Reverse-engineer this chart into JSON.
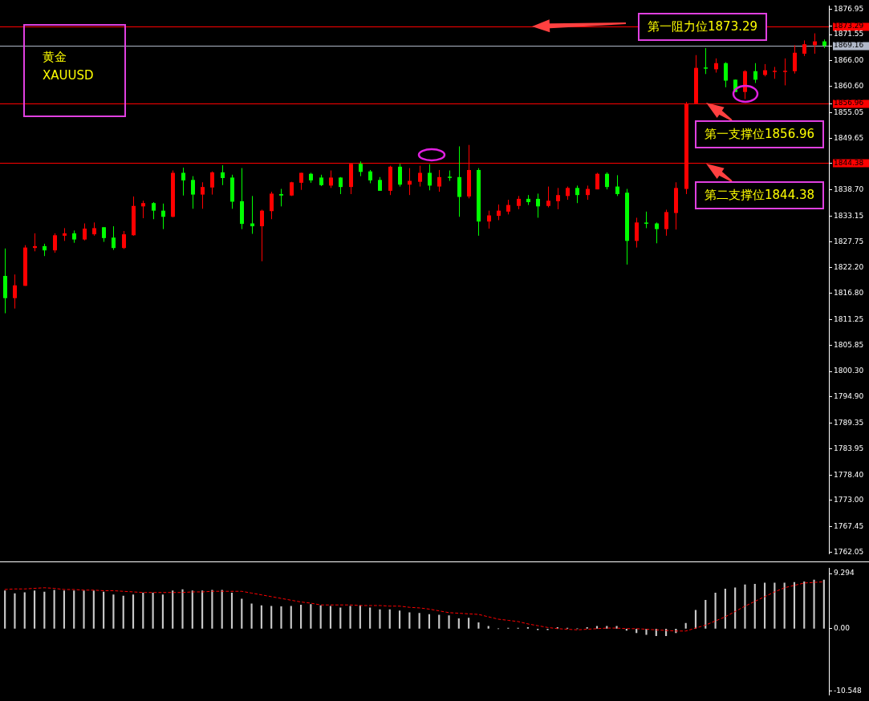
{
  "chart_data": [
    {
      "type": "candlestick",
      "title": "黄金",
      "subtitle": "XAUUSD",
      "categories": [
        null,
        null,
        null,
        null,
        null,
        null,
        null,
        null,
        null,
        null,
        null,
        null,
        null,
        null,
        null,
        null,
        null,
        null,
        null,
        null,
        null,
        null,
        null,
        null,
        null,
        null,
        null,
        null,
        null,
        null,
        null,
        null,
        null,
        null,
        null,
        null,
        null,
        null,
        null,
        null,
        null,
        null,
        null,
        null,
        null,
        null,
        null,
        null,
        null,
        null,
        null,
        null,
        null,
        null,
        null,
        null,
        null,
        null,
        null,
        null,
        null,
        null,
        null,
        null,
        null,
        null,
        null,
        null,
        null,
        null,
        null,
        null,
        null,
        null,
        null,
        null,
        null,
        null,
        null,
        null,
        null,
        null,
        null,
        null
      ],
      "ylim": [
        1761.7,
        1877.6
      ],
      "yticks": [
        1876.95,
        1873.29,
        1871.55,
        1869.16,
        {
          "value": 1866,
          "label": "1866.00"
        },
        {
          "value": 1860.6,
          "label": "1860.60"
        },
        1856.96,
        1855.05,
        1849.65,
        1844.38,
        {
          "value": 1838.7,
          "label": "1838.70"
        },
        1833.15,
        1827.75,
        {
          "value": 1822.2,
          "label": "1822.20"
        },
        {
          "value": 1816.8,
          "label": "1816.80"
        },
        1811.25,
        1805.85,
        {
          "value": 1800.3,
          "label": "1800.30"
        },
        {
          "value": 1794.9,
          "label": "1794.90"
        },
        1789.35,
        1783.95,
        {
          "value": 1778.4,
          "label": "1778.40"
        },
        {
          "value": 1773,
          "label": "1773.00"
        },
        1767.45,
        1762.05
      ],
      "tick_labels": "y",
      "ohlc": [
        [
          1820.5,
          1826.3,
          1812.6,
          1815.8
        ],
        [
          1815.8,
          1820.8,
          1813.6,
          1818.5
        ],
        [
          1818.4,
          1827.0,
          1818.4,
          1826.5
        ],
        [
          1826.4,
          1829.5,
          1825.7,
          1826.8
        ],
        [
          1826.8,
          1827.3,
          1824.7,
          1825.9
        ],
        [
          1825.9,
          1829.5,
          1825.4,
          1829.1
        ],
        [
          1829.0,
          1830.6,
          1827.9,
          1829.5
        ],
        [
          1829.5,
          1830.1,
          1827.5,
          1828.2
        ],
        [
          1828.2,
          1831.6,
          1828.0,
          1830.5
        ],
        [
          1829.3,
          1831.8,
          1829.0,
          1830.6
        ],
        [
          1830.8,
          1830.8,
          1827.7,
          1828.5
        ],
        [
          1828.6,
          1831.0,
          1826.0,
          1826.4
        ],
        [
          1826.4,
          1830.0,
          1826.2,
          1829.3
        ],
        [
          1829.1,
          1837.3,
          1829.0,
          1835.3
        ],
        [
          1835.2,
          1836.4,
          1832.7,
          1835.9
        ],
        [
          1835.9,
          1836.1,
          1832.5,
          1834.3
        ],
        [
          1834.3,
          1835.8,
          1830.4,
          1833.0
        ],
        [
          1833.0,
          1842.8,
          1832.9,
          1842.3
        ],
        [
          1842.3,
          1843.4,
          1837.5,
          1840.7
        ],
        [
          1840.8,
          1841.6,
          1834.7,
          1837.7
        ],
        [
          1837.7,
          1840.3,
          1834.7,
          1839.3
        ],
        [
          1839.2,
          1842.6,
          1837.7,
          1842.4
        ],
        [
          1842.4,
          1843.9,
          1839.7,
          1841.2
        ],
        [
          1841.3,
          1841.9,
          1834.7,
          1836.2
        ],
        [
          1836.3,
          1843.3,
          1830.4,
          1831.5
        ],
        [
          1831.6,
          1837.4,
          1829.4,
          1831.0
        ],
        [
          1831.0,
          1834.5,
          1823.6,
          1834.3
        ],
        [
          1834.2,
          1838.3,
          1832.5,
          1837.9
        ],
        [
          1837.8,
          1838.9,
          1835.2,
          1837.5
        ],
        [
          1837.5,
          1840.4,
          1837.4,
          1840.3
        ],
        [
          1840.2,
          1842.3,
          1838.7,
          1842.3
        ],
        [
          1842.1,
          1842.3,
          1840.2,
          1840.7
        ],
        [
          1841.3,
          1841.9,
          1839.5,
          1839.7
        ],
        [
          1839.6,
          1842.8,
          1839.1,
          1841.3
        ],
        [
          1841.3,
          1841.4,
          1837.8,
          1839.3
        ],
        [
          1839.3,
          1844.2,
          1837.8,
          1844.2
        ],
        [
          1844.2,
          1844.7,
          1841.6,
          1842.5
        ],
        [
          1842.6,
          1842.9,
          1840.1,
          1840.7
        ],
        [
          1840.8,
          1841.4,
          1838.5,
          1838.5
        ],
        [
          1838.5,
          1843.8,
          1837.6,
          1843.6
        ],
        [
          1843.6,
          1844.2,
          1839.4,
          1839.8
        ],
        [
          1839.8,
          1843.3,
          1837.6,
          1840.6
        ],
        [
          1840.4,
          1843.8,
          1839.4,
          1842.3
        ],
        [
          1842.3,
          1844.1,
          1838.6,
          1839.6
        ],
        [
          1839.4,
          1842.9,
          1838.3,
          1841.4
        ],
        [
          1841.4,
          1842.8,
          1840.6,
          1841.3
        ],
        [
          1841.4,
          1847.9,
          1833.0,
          1837.2
        ],
        [
          1837.3,
          1848.2,
          1836.9,
          1842.9
        ],
        [
          1842.9,
          1843.3,
          1829.0,
          1832.0
        ],
        [
          1832.0,
          1834.3,
          1830.5,
          1833.3
        ],
        [
          1833.2,
          1835.6,
          1832.3,
          1834.3
        ],
        [
          1834.1,
          1836.6,
          1833.5,
          1835.5
        ],
        [
          1835.3,
          1837.4,
          1834.6,
          1836.8
        ],
        [
          1836.8,
          1837.6,
          1835.5,
          1836.1
        ],
        [
          1836.8,
          1837.9,
          1832.8,
          1835.2
        ],
        [
          1835.3,
          1839.4,
          1835.0,
          1836.4
        ],
        [
          1836.3,
          1839.1,
          1834.6,
          1837.6
        ],
        [
          1837.4,
          1839.4,
          1836.6,
          1839.1
        ],
        [
          1839.1,
          1839.6,
          1835.9,
          1837.6
        ],
        [
          1837.6,
          1839.6,
          1836.6,
          1838.9
        ],
        [
          1838.8,
          1842.3,
          1838.8,
          1842.1
        ],
        [
          1842.1,
          1842.4,
          1838.8,
          1839.3
        ],
        [
          1839.4,
          1841.8,
          1837.4,
          1837.8
        ],
        [
          1838.1,
          1838.9,
          1822.9,
          1827.9
        ],
        [
          1827.9,
          1832.8,
          1826.5,
          1831.8
        ],
        [
          1831.7,
          1834.1,
          1830.6,
          1831.6
        ],
        [
          1831.6,
          1831.8,
          1827.4,
          1830.4
        ],
        [
          1830.4,
          1834.5,
          1829.0,
          1834.0
        ],
        [
          1833.8,
          1840.3,
          1830.3,
          1839.1
        ],
        [
          1838.9,
          1857.3,
          1837.8,
          1856.9
        ],
        [
          1857.0,
          1867.2,
          1857.0,
          1864.5
        ],
        [
          1864.5,
          1868.7,
          1863.2,
          1864.4
        ],
        [
          1864.2,
          1866.5,
          1863.5,
          1865.5
        ],
        [
          1865.5,
          1865.7,
          1860.4,
          1861.8
        ],
        [
          1862.0,
          1862.0,
          1859.4,
          1859.4
        ],
        [
          1859.4,
          1864.0,
          1857.9,
          1863.8
        ],
        [
          1863.8,
          1865.5,
          1861.3,
          1862.0
        ],
        [
          1863.0,
          1865.3,
          1862.7,
          1864.0
        ],
        [
          1863.6,
          1864.7,
          1862.2,
          1863.8
        ],
        [
          1863.6,
          1866.5,
          1860.8,
          1863.8
        ],
        [
          1863.8,
          1869.3,
          1863.3,
          1867.7
        ],
        [
          1867.5,
          1870.3,
          1867.0,
          1869.5
        ],
        [
          1869.3,
          1871.8,
          1867.5,
          1870.1
        ],
        [
          1870.1,
          1870.5,
          1868.7,
          1869.2
        ]
      ],
      "colors": [
        "#00ff00",
        "#ff0000",
        "#ff0000",
        "#ff0000",
        "#00ff00",
        "#ff0000",
        "#ff0000",
        "#00ff00",
        "#ff0000",
        "#ff0000",
        "#00ff00",
        "#00ff00",
        "#ff0000",
        "#ff0000",
        "#ff0000",
        "#00ff00",
        "#00ff00",
        "#ff0000",
        "#00ff00",
        "#00ff00",
        "#ff0000",
        "#ff0000",
        "#00ff00",
        "#00ff00",
        "#00ff00",
        "#00ff00",
        "#ff0000",
        "#ff0000",
        "#00ff00",
        "#ff0000",
        "#ff0000",
        "#00ff00",
        "#00ff00",
        "#ff0000",
        "#00ff00",
        "#ff0000",
        "#00ff00",
        "#00ff00",
        "#00ff00",
        "#ff0000",
        "#00ff00",
        "#ff0000",
        "#ff0000",
        "#00ff00",
        "#ff0000",
        "#00ff00",
        "#00ff00",
        "#ff0000",
        "#00ff00",
        "#ff0000",
        "#ff0000",
        "#ff0000",
        "#ff0000",
        "#00ff00",
        "#00ff00",
        "#ff0000",
        "#ff0000",
        "#ff0000",
        "#00ff00",
        "#ff0000",
        "#ff0000",
        "#00ff00",
        "#00ff00",
        "#00ff00",
        "#ff0000",
        "#00ff00",
        "#00ff00",
        "#ff0000",
        "#ff0000",
        "#ff0000",
        "#ff0000",
        "#00ff00",
        "#ff0000",
        "#00ff00",
        "#00ff00",
        "#ff0000",
        "#00ff00",
        "#ff0000",
        "#ff0000",
        "#ff0000",
        "#ff0000",
        "#ff0000",
        "#ff0000",
        "#00ff00"
      ],
      "ref_lines": [
        {
          "axis": "y",
          "value": 1873.29,
          "label": "第一阻力位1873.29",
          "color": "#ff0000"
        },
        {
          "axis": "y",
          "value": 1869.16,
          "color": "#b0b8c8"
        },
        {
          "axis": "y",
          "value": 1856.96,
          "label": "第一支撑位1856.96",
          "color": "#ff0000"
        },
        {
          "axis": "y",
          "value": 1844.38,
          "label": "第二支撑位1844.38",
          "color": "#ff0000"
        }
      ]
    },
    {
      "type": "bar",
      "categories": [
        null,
        null,
        null,
        null,
        null,
        null,
        null,
        null,
        null,
        null,
        null,
        null,
        null,
        null,
        null,
        null,
        null,
        null,
        null,
        null,
        null,
        null,
        null,
        null,
        null,
        null,
        null,
        null,
        null,
        null,
        null,
        null,
        null,
        null,
        null,
        null,
        null,
        null,
        null,
        null,
        null,
        null,
        null,
        null,
        null,
        null,
        null,
        null,
        null,
        null,
        null,
        null,
        null,
        null,
        null,
        null,
        null,
        null,
        null,
        null,
        null,
        null,
        null,
        null,
        null,
        null,
        null,
        null,
        null,
        null,
        null,
        null,
        null,
        null,
        null,
        null,
        null,
        null,
        null,
        null,
        null,
        null,
        null,
        null
      ],
      "ylim": [
        -11.2,
        10.2
      ],
      "yticks": [
        9.294,
        {
          "value": 0,
          "label": "0.00"
        },
        -10.548
      ],
      "tick_labels": "y",
      "series": [
        {
          "type": "bar",
          "color": "#c8c8c8",
          "values": [
            6.4,
            5.9,
            6.1,
            6.4,
            6.2,
            6.5,
            6.4,
            6.4,
            6.4,
            6.4,
            6.2,
            5.7,
            5.5,
            5.7,
            6.0,
            6.0,
            5.7,
            6.4,
            6.6,
            6.4,
            6.4,
            6.5,
            6.5,
            6.0,
            5.0,
            4.2,
            3.9,
            3.8,
            3.7,
            3.8,
            4.0,
            4.1,
            3.9,
            3.8,
            3.5,
            3.8,
            3.9,
            3.5,
            3.2,
            3.2,
            3.0,
            2.7,
            2.6,
            2.4,
            2.3,
            2.2,
            1.7,
            1.8,
            1.0,
            0.4,
            0,
            0.1,
            0.1,
            0.2,
            -0.2,
            -0.2,
            0.2,
            0.1,
            0,
            0.2,
            0.4,
            0.4,
            0.4,
            -0.3,
            -0.7,
            -1.0,
            -1.2,
            -1.2,
            -0.7,
            0.9,
            3.1,
            4.8,
            6.0,
            6.7,
            6.9,
            7.4,
            7.5,
            7.7,
            7.7,
            7.7,
            7.8,
            7.9,
            8.2,
            8.2
          ]
        },
        {
          "type": "line",
          "color": "#ff0000",
          "line_style": "dashed",
          "values": [
            6.6,
            6.7,
            6.7,
            6.8,
            6.9,
            6.8,
            6.6,
            6.6,
            6.5,
            6.5,
            6.4,
            6.4,
            6.3,
            6.2,
            6.1,
            6.1,
            6.1,
            6.1,
            6.1,
            6.2,
            6.2,
            6.3,
            6.3,
            6.3,
            6.3,
            6.0,
            5.7,
            5.4,
            5.1,
            4.8,
            4.5,
            4.3,
            4.0,
            4.0,
            4.0,
            4.0,
            3.9,
            3.9,
            3.9,
            3.8,
            3.8,
            3.6,
            3.5,
            3.3,
            3.0,
            2.7,
            2.6,
            2.5,
            2.4,
            2.0,
            1.6,
            1.4,
            1.2,
            0.8,
            0.5,
            0.2,
            0,
            -0.1,
            -0.2,
            -0.1,
            0,
            0.1,
            0.1,
            0,
            0,
            -0.1,
            -0.2,
            -0.3,
            -0.4,
            -0.4,
            0.1,
            0.6,
            1.3,
            2.0,
            2.9,
            3.8,
            4.6,
            5.4,
            6.2,
            6.9,
            7.3,
            7.7,
            7.8,
            7.9
          ]
        }
      ]
    }
  ]
}
